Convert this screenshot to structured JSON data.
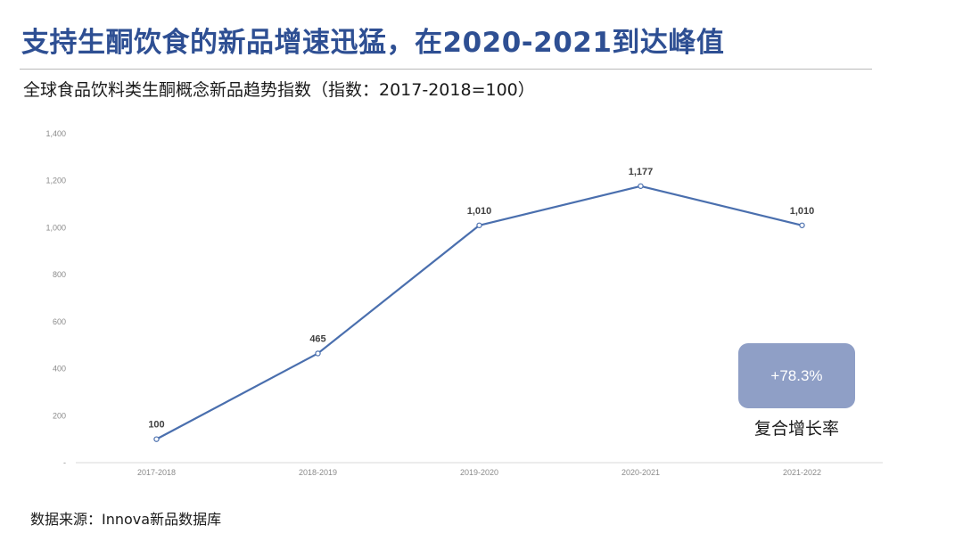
{
  "headline": "支持生酮饮食的新品增速迅猛，在2020-2021到达峰值",
  "subtitle": "全球食品饮料类生酮概念新品趋势指数（指数：2017-2018=100）",
  "source": "数据来源：Innova新品数据库",
  "cagr": {
    "value": "+78.3%",
    "label": "复合增长率"
  },
  "colors": {
    "headline": "#2e4f93",
    "line": "#4a6fae",
    "cagr_box": "#8f9fc6"
  },
  "chart_data": {
    "type": "line",
    "title": "全球食品饮料类生酮概念新品趋势指数（指数：2017-2018=100）",
    "categories": [
      "2017-2018",
      "2018-2019",
      "2019-2020",
      "2020-2021",
      "2021-2022"
    ],
    "values": [
      100,
      465,
      1010,
      1177,
      1010
    ],
    "value_labels": [
      "100",
      "465",
      "1,010",
      "1,177",
      "1,010"
    ],
    "ylim": [
      0,
      1400
    ],
    "yticks": [
      0,
      200,
      400,
      600,
      800,
      1000,
      1200,
      1400
    ],
    "ytick_labels": [
      "-",
      "200",
      "400",
      "600",
      "800",
      "1,000",
      "1,200",
      "1,400"
    ],
    "xlabel": "",
    "ylabel": "",
    "grid": false,
    "legend": "none"
  }
}
